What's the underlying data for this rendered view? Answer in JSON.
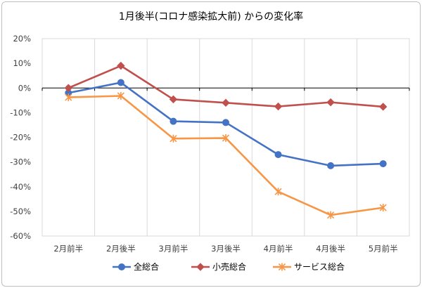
{
  "chart_data": {
    "type": "line",
    "title": "1月後半(コロナ感染拡大前) からの変化率",
    "xlabel": "",
    "ylabel": "",
    "categories": [
      "2月前半",
      "2月後半",
      "3月前半",
      "3月後半",
      "4月前半",
      "4月後半",
      "5月前半"
    ],
    "ylim": [
      -60,
      20
    ],
    "yticks": [
      20,
      10,
      0,
      -10,
      -20,
      -30,
      -40,
      -50,
      -60
    ],
    "ytick_labels": [
      "20%",
      "10%",
      "0%",
      "-10%",
      "-20%",
      "-30%",
      "-40%",
      "-50%",
      "-60%"
    ],
    "grid": "vertical category gridlines",
    "legend_position": "bottom",
    "series": [
      {
        "name": "全総合",
        "values": [
          -2,
          2.2,
          -13.5,
          -14,
          -27,
          -31.5,
          -30.7
        ],
        "color": "#4472c4",
        "marker": "circle"
      },
      {
        "name": "小売総合",
        "values": [
          0,
          9,
          -4.6,
          -6,
          -7.5,
          -5.8,
          -7.6
        ],
        "color": "#c0504d",
        "marker": "diamond"
      },
      {
        "name": "サービス総合",
        "values": [
          -3.8,
          -3.2,
          -20.5,
          -20.3,
          -42,
          -51.5,
          -48.5
        ],
        "color": "#f79646",
        "marker": "star"
      }
    ]
  }
}
